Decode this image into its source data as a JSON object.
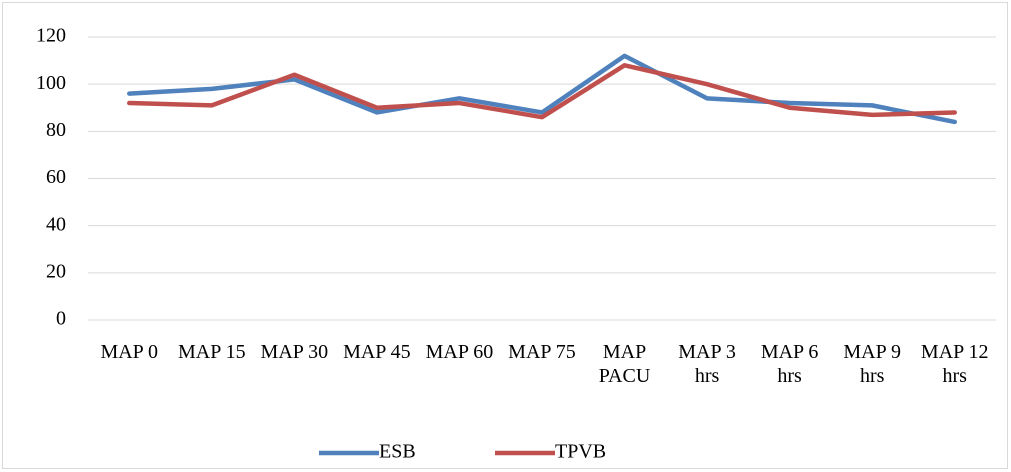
{
  "chart_data": {
    "type": "line",
    "categories": [
      "MAP 0",
      "MAP 15",
      "MAP 30",
      "MAP 45",
      "MAP 60",
      "MAP 75",
      "MAP PACU",
      "MAP 3 hrs",
      "MAP 6 hrs",
      "MAP 9 hrs",
      "MAP 12 hrs"
    ],
    "series": [
      {
        "name": "ESB",
        "color": "#4f81bd",
        "values": [
          96,
          98,
          102,
          88,
          94,
          88,
          112,
          94,
          92,
          91,
          84
        ]
      },
      {
        "name": "TPVB",
        "color": "#c0504d",
        "values": [
          92,
          91,
          104,
          90,
          92,
          86,
          108,
          100,
          90,
          87,
          88
        ]
      }
    ],
    "ylim": [
      0,
      120
    ],
    "yticks": [
      0,
      20,
      40,
      60,
      80,
      100,
      120
    ],
    "grid": true,
    "legend": "bottom"
  }
}
